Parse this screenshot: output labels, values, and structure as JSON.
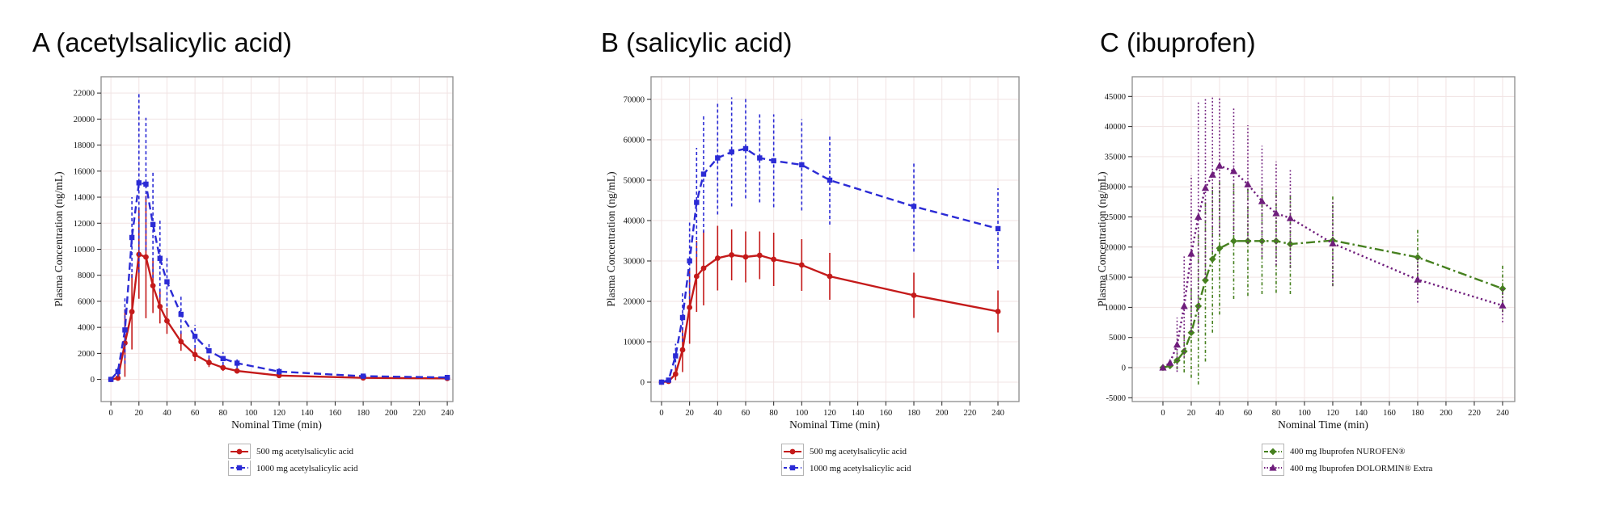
{
  "figure": {
    "background": "#ffffff"
  },
  "chart_data": [
    {
      "type": "line",
      "panel_label": "A",
      "title": "A (acetylsalicylic acid)",
      "xlabel": "Nominal Time (min)",
      "ylabel": "Plasma Concentration (ng/mL)",
      "grid": true,
      "legend_position": "bottom-center",
      "xlim": [
        -7,
        244
      ],
      "ylim": [
        -1700,
        23250
      ],
      "xticks": [
        0,
        20,
        40,
        60,
        80,
        100,
        120,
        140,
        160,
        180,
        200,
        220,
        240
      ],
      "yticks": [
        0,
        2000,
        4000,
        6000,
        8000,
        10000,
        12000,
        14000,
        16000,
        18000,
        20000,
        22000
      ],
      "x": [
        0,
        5,
        10,
        15,
        20,
        25,
        30,
        35,
        40,
        50,
        60,
        70,
        80,
        90,
        120,
        180,
        240
      ],
      "series": [
        {
          "name": "500 mg acetylsalicylic acid",
          "color": "#c41a1a",
          "line_style": "solid",
          "err_style": "solid",
          "marker": "circle",
          "y": [
            0,
            100,
            2800,
            5200,
            9600,
            9400,
            7200,
            5600,
            4500,
            2900,
            1900,
            1300,
            900,
            650,
            300,
            120,
            80
          ],
          "err": [
            0,
            80,
            2600,
            2900,
            3400,
            4700,
            2100,
            1300,
            1000,
            700,
            500,
            350,
            250,
            200,
            120,
            60,
            40
          ]
        },
        {
          "name": "1000 mg acetylsalicylic acid",
          "color": "#2b2bd5",
          "line_style": "dash",
          "err_style": "dash",
          "marker": "square",
          "y": [
            0,
            600,
            3800,
            10900,
            15100,
            15000,
            11900,
            9300,
            7500,
            5000,
            3300,
            2200,
            1600,
            1250,
            600,
            250,
            150
          ],
          "err": [
            0,
            400,
            2600,
            3100,
            6900,
            5100,
            4100,
            3000,
            1900,
            1500,
            900,
            600,
            500,
            400,
            250,
            120,
            80
          ]
        }
      ]
    },
    {
      "type": "line",
      "panel_label": "B",
      "title": "B (salicylic acid)",
      "xlabel": "Nominal Time (min)",
      "ylabel": "Plasma Concentration (ng/mL)",
      "grid": true,
      "legend_position": "bottom-center",
      "xlim": [
        -7.5,
        255
      ],
      "ylim": [
        -4800,
        75600
      ],
      "xticks": [
        0,
        20,
        40,
        60,
        80,
        100,
        120,
        140,
        160,
        180,
        200,
        220,
        240
      ],
      "yticks": [
        0,
        10000,
        20000,
        30000,
        40000,
        50000,
        60000,
        70000
      ],
      "x": [
        0,
        5,
        10,
        15,
        20,
        25,
        30,
        40,
        50,
        60,
        70,
        80,
        100,
        120,
        180,
        240
      ],
      "series": [
        {
          "name": "500 mg acetylsalicylic acid",
          "color": "#c41a1a",
          "line_style": "solid",
          "err_style": "solid",
          "marker": "circle",
          "y": [
            0,
            200,
            2000,
            8000,
            18500,
            26200,
            28200,
            30700,
            31500,
            31000,
            31400,
            30400,
            29000,
            26200,
            21500,
            17500
          ],
          "err": [
            0,
            150,
            1500,
            5500,
            9000,
            8800,
            9200,
            8000,
            6300,
            6300,
            5900,
            6600,
            6400,
            5800,
            5600,
            5200
          ]
        },
        {
          "name": "1000 mg acetylsalicylic acid",
          "color": "#2b2bd5",
          "line_style": "dash",
          "err_style": "dash",
          "marker": "square",
          "y": [
            0,
            500,
            6500,
            16000,
            30000,
            44500,
            51500,
            55500,
            57000,
            57800,
            55500,
            54800,
            53800,
            50000,
            43500,
            38000
          ],
          "err": [
            0,
            400,
            3000,
            6000,
            9500,
            13500,
            14500,
            14000,
            13500,
            12300,
            11000,
            11500,
            11300,
            11000,
            11200,
            10000
          ]
        }
      ]
    },
    {
      "type": "line",
      "panel_label": "C",
      "title": "C (ibuprofen)",
      "xlabel": "Nominal Time (min)",
      "ylabel": "Plasma Concentration (ng/mL)",
      "grid": true,
      "legend_position": "bottom-center",
      "xlim": [
        -21.7,
        248.6
      ],
      "ylim": [
        -5630,
        48260
      ],
      "xticks": [
        0,
        20,
        40,
        60,
        80,
        100,
        120,
        140,
        160,
        180,
        200,
        220,
        240
      ],
      "yticks": [
        -5000,
        0,
        5000,
        10000,
        15000,
        20000,
        25000,
        30000,
        35000,
        40000,
        45000
      ],
      "x": [
        0,
        5,
        10,
        15,
        20,
        25,
        30,
        35,
        40,
        50,
        60,
        70,
        80,
        90,
        120,
        180,
        240
      ],
      "series": [
        {
          "name": "400 mg Ibuprofen NUROFEN®",
          "color": "#46801f",
          "line_style": "dashdot",
          "err_style": "dashdot",
          "marker": "diamond",
          "y": [
            0,
            300,
            1200,
            2700,
            5800,
            10200,
            14500,
            18000,
            19800,
            21000,
            21000,
            21000,
            21000,
            20500,
            21100,
            18300,
            13100
          ],
          "err": [
            150,
            300,
            1500,
            3500,
            7500,
            13000,
            13500,
            12200,
            11000,
            9600,
            9100,
            8800,
            8600,
            8300,
            7600,
            4600,
            3900
          ]
        },
        {
          "name": "400 mg Ibuprofen DOLORMIN® Extra",
          "color": "#6f1d7c",
          "line_style": "dot",
          "err_style": "dot",
          "marker": "triangle",
          "y": [
            0,
            800,
            3800,
            10200,
            18900,
            25000,
            29800,
            32000,
            33500,
            32600,
            30400,
            27600,
            25600,
            24800,
            20600,
            14600,
            10300
          ],
          "err": [
            200,
            600,
            4500,
            8500,
            13000,
            19000,
            15000,
            12800,
            11500,
            10500,
            9800,
            9200,
            8600,
            8200,
            7000,
            3800,
            2800
          ]
        }
      ]
    }
  ]
}
